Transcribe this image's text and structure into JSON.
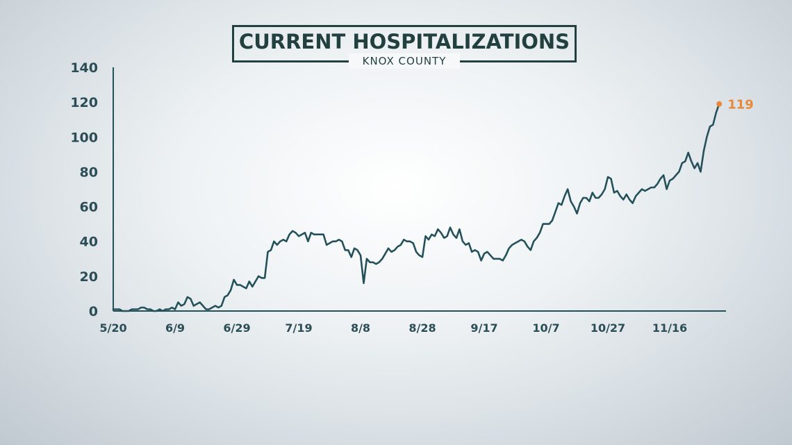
{
  "header": {
    "title": "CURRENT HOSPITALIZATIONS",
    "subtitle": "KNOX COUNTY"
  },
  "colors": {
    "line": "#24505a",
    "axis": "#24505a",
    "tick_text": "#2b4d56",
    "highlight": "#e8893a",
    "title": "#22403f"
  },
  "chart_data": {
    "type": "line",
    "title": "CURRENT HOSPITALIZATIONS",
    "subtitle": "KNOX COUNTY",
    "xlabel": "",
    "ylabel": "",
    "ylim": [
      0,
      140
    ],
    "yticks": [
      0,
      20,
      40,
      60,
      80,
      100,
      120,
      140
    ],
    "xticks": [
      "5/20",
      "6/9",
      "6/29",
      "7/19",
      "8/8",
      "8/28",
      "9/17",
      "10/7",
      "10/27",
      "11/16"
    ],
    "x_start": "5/20",
    "grid": false,
    "end_label": "119",
    "series": [
      {
        "values": [
          1,
          1,
          1,
          0,
          0,
          0,
          1,
          1,
          1,
          2,
          2,
          1,
          1,
          0,
          0,
          1,
          0,
          1,
          1,
          2,
          1,
          5,
          3,
          4,
          8,
          7,
          3,
          4,
          5,
          3,
          1,
          1,
          2,
          3,
          2,
          3,
          8,
          9,
          12,
          18,
          15,
          15,
          14,
          13,
          17,
          14,
          17,
          20,
          19,
          19,
          34,
          35,
          40,
          38,
          40,
          41,
          40,
          44,
          46,
          45,
          43,
          44,
          45,
          40,
          45,
          44,
          44,
          44,
          44,
          38,
          39,
          40,
          40,
          41,
          40,
          35,
          35,
          31,
          36,
          35,
          32,
          16,
          30,
          28,
          28,
          27,
          28,
          30,
          33,
          36,
          34,
          35,
          37,
          38,
          41,
          40,
          40,
          39,
          34,
          32,
          31,
          43,
          41,
          44,
          43,
          47,
          45,
          42,
          43,
          48,
          44,
          42,
          47,
          40,
          38,
          39,
          34,
          35,
          34,
          29,
          33,
          34,
          32,
          30,
          30,
          30,
          29,
          32,
          36,
          38,
          39,
          40,
          41,
          40,
          37,
          35,
          40,
          42,
          45,
          50,
          50,
          50,
          52,
          57,
          62,
          61,
          66,
          70,
          63,
          60,
          56,
          62,
          65,
          65,
          63,
          68,
          65,
          65,
          67,
          70,
          77,
          76,
          68,
          69,
          66,
          64,
          67,
          64,
          62,
          66,
          68,
          70,
          69,
          70,
          71,
          71,
          73,
          76,
          78,
          70,
          75,
          76,
          78,
          80,
          85,
          86,
          91,
          86,
          82,
          85,
          80,
          92,
          100,
          106,
          107,
          114,
          119
        ]
      }
    ]
  }
}
